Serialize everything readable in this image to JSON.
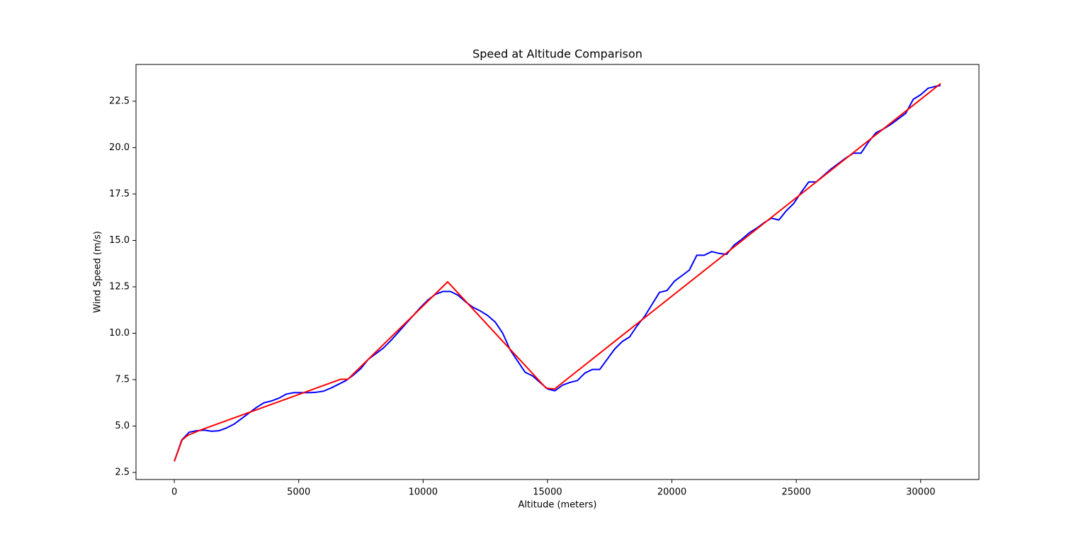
{
  "chart_data": {
    "type": "line",
    "title": "Speed at Altitude Comparison",
    "x_label": "Altitude (meters)",
    "y_label": "Wind Speed (m/s)",
    "series": [
      {
        "color": "#0000ff",
        "x": [
          0,
          300,
          600,
          900,
          1200,
          1500,
          1800,
          2100,
          2400,
          2700,
          3000,
          3300,
          3600,
          3900,
          4200,
          4500,
          4800,
          5100,
          5400,
          5700,
          6000,
          6300,
          6600,
          6900,
          7200,
          7500,
          7800,
          8100,
          8400,
          8700,
          9000,
          9300,
          9600,
          9900,
          10200,
          10500,
          10800,
          11100,
          11400,
          11700,
          12000,
          12300,
          12600,
          12900,
          13200,
          13500,
          13800,
          14100,
          14400,
          14700,
          15000,
          15300,
          15600,
          15900,
          16200,
          16500,
          16800,
          17100,
          17400,
          17700,
          18000,
          18300,
          18600,
          18900,
          19200,
          19500,
          19800,
          20100,
          20400,
          20700,
          21000,
          21300,
          21600,
          21900,
          22200,
          22500,
          22800,
          23100,
          23400,
          23700,
          24000,
          24300,
          24600,
          24900,
          25200,
          25500,
          25800,
          26100,
          26400,
          26700,
          27000,
          27300,
          27600,
          27900,
          28200,
          28500,
          28800,
          29100,
          29400,
          29700,
          30000,
          30300,
          30600,
          30800
        ],
        "values": [
          3.1,
          4.25,
          4.67,
          4.75,
          4.78,
          4.72,
          4.75,
          4.9,
          5.1,
          5.4,
          5.7,
          6.0,
          6.25,
          6.35,
          6.5,
          6.72,
          6.8,
          6.8,
          6.8,
          6.82,
          6.88,
          7.05,
          7.25,
          7.45,
          7.75,
          8.1,
          8.6,
          8.9,
          9.2,
          9.6,
          10.05,
          10.5,
          10.95,
          11.4,
          11.8,
          12.1,
          12.25,
          12.25,
          12.05,
          11.7,
          11.4,
          11.2,
          10.95,
          10.6,
          10.0,
          9.1,
          8.5,
          7.9,
          7.7,
          7.35,
          7.0,
          6.9,
          7.2,
          7.35,
          7.45,
          7.85,
          8.05,
          8.05,
          8.6,
          9.15,
          9.55,
          9.8,
          10.4,
          10.9,
          11.55,
          12.2,
          12.3,
          12.8,
          13.1,
          13.4,
          14.2,
          14.2,
          14.4,
          14.3,
          14.25,
          14.75,
          15.05,
          15.4,
          15.65,
          15.95,
          16.2,
          16.1,
          16.6,
          17.0,
          17.6,
          18.15,
          18.15,
          18.5,
          18.85,
          19.15,
          19.45,
          19.7,
          19.7,
          20.3,
          20.8,
          21.0,
          21.25,
          21.55,
          21.85,
          22.6,
          22.85,
          23.2,
          23.3,
          23.35
        ]
      },
      {
        "color": "#ff0000",
        "x": [
          0,
          313,
          540,
          1025,
          6690,
          6974,
          10988,
          14945,
          15286,
          30800
        ],
        "values": [
          3.1,
          4.25,
          4.5,
          4.77,
          7.52,
          7.52,
          12.77,
          7.04,
          7.0,
          23.45
        ]
      }
    ],
    "xlim": [
      -1540,
      32340
    ],
    "xticks": [
      0,
      5000,
      10000,
      15000,
      20000,
      25000,
      30000
    ],
    "ylim": [
      2.12,
      24.48
    ],
    "yticks": [
      2.5,
      {
        "value": 5,
        "label": "5.0"
      },
      7.5,
      {
        "value": 10,
        "label": "10.0"
      },
      12.5,
      {
        "value": 15,
        "label": "15.0"
      },
      17.5,
      {
        "value": 20,
        "label": "20.0"
      },
      22.5
    ],
    "grid": false
  }
}
